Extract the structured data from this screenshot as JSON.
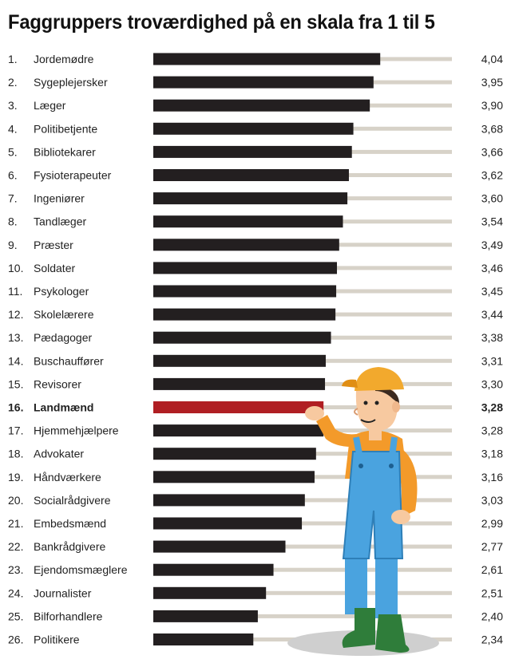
{
  "chart_data": {
    "type": "bar",
    "orientation": "horizontal",
    "title": "Faggruppers troværdighed på en skala fra 1 til 5",
    "xlabel": "",
    "ylabel": "",
    "xlim": [
      1,
      5
    ],
    "grid": false,
    "legend": "none",
    "categories": [
      "Jordemødre",
      "Sygeplejersker",
      "Læger",
      "Politibetjente",
      "Bibliotekarer",
      "Fysioterapeuter",
      "Ingeniører",
      "Tandlæger",
      "Præster",
      "Soldater",
      "Psykologer",
      "Skolelærere",
      "Pædagoger",
      "Buschauffører",
      "Revisorer",
      "Landmænd",
      "Hjemmehjælpere",
      "Advokater",
      "Håndværkere",
      "Socialrådgivere",
      "Embedsmænd",
      "Bankrådgivere",
      "Ejendomsmæglere",
      "Journalister",
      "Bilforhandlere",
      "Politikere"
    ],
    "ranks": [
      "1.",
      "2.",
      "3.",
      "4.",
      "5.",
      "6.",
      "7.",
      "8.",
      "9.",
      "10.",
      "11.",
      "12.",
      "13.",
      "14.",
      "15.",
      "16.",
      "17.",
      "18.",
      "19.",
      "20.",
      "21.",
      "22.",
      "23.",
      "24.",
      "25.",
      "26."
    ],
    "values": [
      4.04,
      3.95,
      3.9,
      3.68,
      3.66,
      3.62,
      3.6,
      3.54,
      3.49,
      3.46,
      3.45,
      3.44,
      3.38,
      3.31,
      3.3,
      3.28,
      3.28,
      3.18,
      3.16,
      3.03,
      2.99,
      2.77,
      2.61,
      2.51,
      2.4,
      2.34
    ],
    "value_labels": [
      "4,04",
      "3,95",
      "3,90",
      "3,68",
      "3,66",
      "3,62",
      "3,60",
      "3,54",
      "3,49",
      "3,46",
      "3,45",
      "3,44",
      "3,38",
      "3,31",
      "3,30",
      "3,28",
      "3,28",
      "3,18",
      "3,16",
      "3,03",
      "2,99",
      "2,77",
      "2,61",
      "2,51",
      "2,40",
      "2,34"
    ],
    "highlight_index": 15,
    "colors": {
      "bar": "#231f20",
      "highlight": "#b01e23",
      "track": "#d7d2c8",
      "text": "#222222",
      "cap": "#f2a92d",
      "skin": "#f7c9a0",
      "overalls": "#4aa3df",
      "shirt": "#f39a2a",
      "boots": "#2f7d3a",
      "shadow": "#c9c9c9"
    }
  }
}
